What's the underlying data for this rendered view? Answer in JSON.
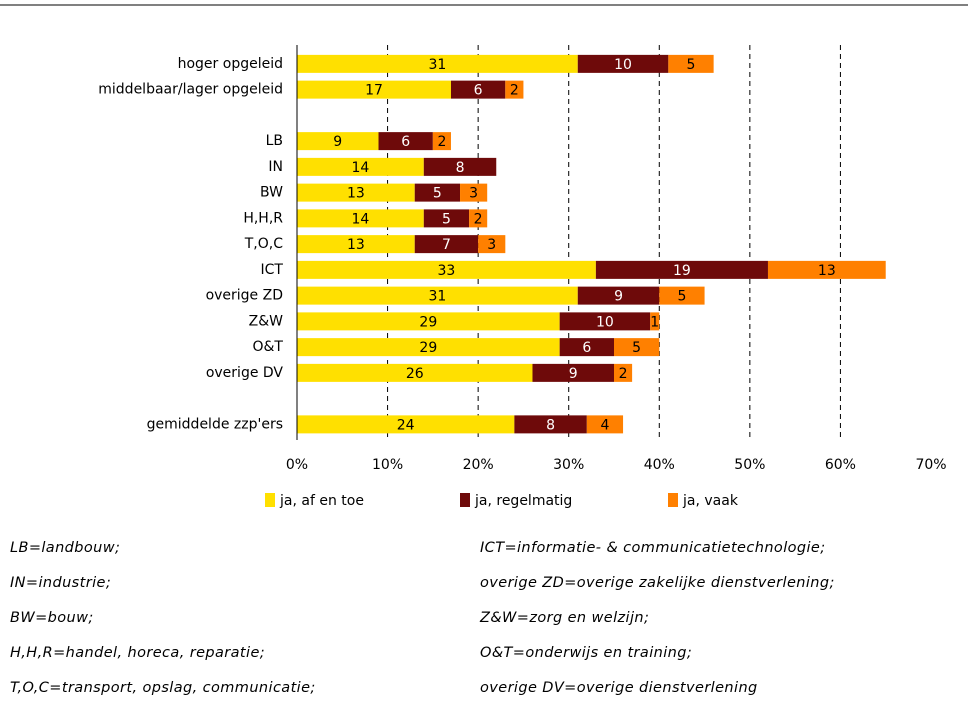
{
  "chart_data": {
    "type": "stacked-bar-horizontal",
    "categories": [
      "hoger opgeleid",
      "middelbaar/lager opgeleid",
      null,
      "LB",
      "IN",
      "BW",
      "H,H,R",
      "T,O,C",
      "ICT",
      "overige ZD",
      "Z&W",
      "O&T",
      "overige DV",
      null,
      "gemiddelde zzp'ers"
    ],
    "series": [
      {
        "name": "ja, af en toe",
        "color": "#ffe000",
        "text_color": "#000000",
        "values": [
          31,
          17,
          null,
          9,
          14,
          13,
          14,
          13,
          33,
          31,
          29,
          29,
          26,
          null,
          24
        ]
      },
      {
        "name": "ja, regelmatig",
        "color": "#6e0a0a",
        "text_color": "#ffffff",
        "values": [
          10,
          6,
          null,
          6,
          8,
          5,
          5,
          7,
          19,
          9,
          10,
          6,
          9,
          null,
          8
        ]
      },
      {
        "name": "ja, vaak",
        "color": "#ff8000",
        "text_color": "#000000",
        "values": [
          5,
          2,
          null,
          2,
          null,
          3,
          2,
          3,
          13,
          5,
          1,
          5,
          2,
          null,
          4
        ]
      }
    ],
    "xlim": [
      0,
      70
    ],
    "xticks": [
      {
        "value": 0,
        "label": "0%"
      },
      {
        "value": 10,
        "label": "10%"
      },
      {
        "value": 20,
        "label": "20%"
      },
      {
        "value": 30,
        "label": "30%"
      },
      {
        "value": 40,
        "label": "40%"
      },
      {
        "value": 50,
        "label": "50%"
      },
      {
        "value": 60,
        "label": "60%"
      },
      {
        "value": 70,
        "label": "70%"
      }
    ],
    "grid": true,
    "legend": "bottom"
  },
  "footnotes": {
    "left": [
      "LB=landbouw;",
      "IN=industrie;",
      "BW=bouw;",
      "H,H,R=handel, horeca, reparatie;",
      "T,O,C=transport, opslag, communicatie;"
    ],
    "right": [
      "ICT=informatie- & communicatietechnologie;",
      "overige ZD=overige zakelijke dienstverlening;",
      "Z&W=zorg en welzijn;",
      "O&T=onderwijs en training;",
      "overige DV=overige dienstverlening"
    ]
  }
}
